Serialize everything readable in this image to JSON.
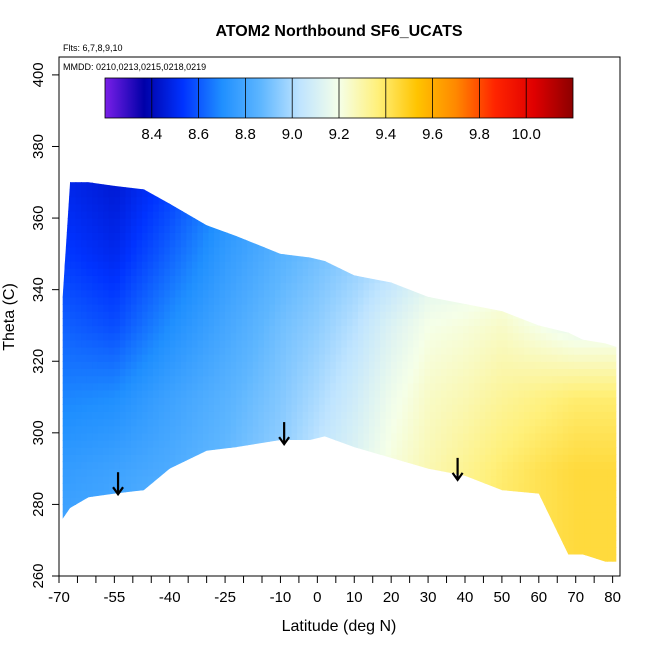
{
  "chart_data": {
    "type": "heatmap",
    "title": "ATOM2 Northbound SF6_UCATS",
    "annotations": {
      "flights": "Flts: 6,7,8,9,10",
      "dates": "MMDD: 0210,0213,0215,0218,0219"
    },
    "xlabel": "Latitude (deg N)",
    "ylabel": "Theta (C)",
    "xlim": [
      -70,
      82
    ],
    "ylim": [
      260,
      405
    ],
    "x_tick_labels": [
      "-70",
      "-55",
      "-40",
      "-25",
      "-10",
      "0",
      "10",
      "20",
      "30",
      "40",
      "50",
      "60",
      "70",
      "80"
    ],
    "x_ticks": [
      -70,
      -55,
      -40,
      -25,
      -10,
      0,
      10,
      20,
      30,
      40,
      50,
      60,
      70,
      80
    ],
    "x_minor_ticks": [
      -65,
      -60,
      -50,
      -45,
      -35,
      -30,
      -20,
      -15,
      -5,
      5,
      15,
      25,
      35,
      45,
      55,
      65,
      75
    ],
    "y_tick_labels": [
      "260",
      "280",
      "300",
      "320",
      "340",
      "360",
      "380",
      "400"
    ],
    "y_ticks": [
      260,
      280,
      300,
      320,
      340,
      360,
      380,
      400
    ],
    "colorbar": {
      "range": [
        8.2,
        10.2
      ],
      "tick_labels": [
        "8.4",
        "8.6",
        "8.8",
        "9.0",
        "9.2",
        "9.4",
        "9.6",
        "9.8",
        "10.0"
      ],
      "tick_values": [
        8.4,
        8.6,
        8.8,
        9.0,
        9.2,
        9.4,
        9.6,
        9.8,
        10.0
      ],
      "colors": [
        "#7a1fe8",
        "#0000a8",
        "#0033ff",
        "#1f8fff",
        "#5eb6ff",
        "#bfe4ff",
        "#f5ffe8",
        "#fff07a",
        "#ffc400",
        "#ff8800",
        "#ff2400",
        "#e00000",
        "#8c0000"
      ]
    },
    "coverage": {
      "lat": [
        -69,
        -67,
        -62,
        -55,
        -47,
        -40,
        -30,
        -22,
        -10,
        -2,
        2,
        10,
        20,
        30,
        40,
        50,
        60,
        68,
        72,
        78,
        81
      ],
      "theta_top": [
        338,
        370,
        370,
        369,
        368,
        364,
        358,
        355,
        350,
        349,
        348,
        344,
        342,
        338,
        336,
        334,
        330,
        328,
        326,
        325,
        324
      ],
      "theta_bottom": [
        276,
        279,
        282,
        283,
        284,
        290,
        295,
        296,
        298,
        298,
        299,
        296,
        293,
        290,
        288,
        284,
        283,
        266,
        266,
        264,
        264
      ]
    },
    "field_anchors": {
      "lat": [
        -70,
        -55,
        -40,
        -25,
        -10,
        0,
        10,
        20,
        30,
        40,
        50,
        60,
        70,
        80
      ],
      "theta": [
        270,
        290,
        310,
        330,
        350,
        370
      ],
      "values": [
        [
          8.8,
          8.82,
          8.88,
          8.95,
          9.05,
          9.1,
          9.18,
          9.25,
          9.3,
          9.35,
          9.4,
          9.42,
          9.45,
          9.45
        ],
        [
          8.75,
          8.78,
          8.82,
          8.88,
          8.96,
          9.05,
          9.13,
          9.22,
          9.28,
          9.33,
          9.38,
          9.42,
          9.45,
          9.45
        ],
        [
          8.68,
          8.7,
          8.78,
          8.85,
          8.93,
          9.0,
          9.08,
          9.18,
          9.25,
          9.28,
          9.32,
          9.35,
          9.38,
          9.38
        ],
        [
          8.62,
          8.58,
          8.7,
          8.8,
          8.9,
          8.95,
          9.02,
          9.12,
          9.2,
          9.22,
          9.25,
          9.2,
          9.15,
          9.15
        ],
        [
          8.55,
          8.5,
          8.62,
          8.75,
          8.85,
          8.9,
          8.95,
          9.0,
          9.1,
          9.12,
          9.15,
          9.1,
          9.05,
          9.05
        ],
        [
          8.5,
          8.45,
          8.55,
          8.7,
          8.82,
          8.88,
          8.92,
          8.95,
          9.0,
          9.02,
          9.05,
          9.0,
          8.95,
          8.95
        ]
      ]
    },
    "arrows": [
      {
        "lat": -54,
        "theta": 289,
        "direction": "down"
      },
      {
        "lat": -9,
        "theta": 303,
        "direction": "down"
      },
      {
        "lat": 38,
        "theta": 293,
        "direction": "down"
      }
    ]
  }
}
